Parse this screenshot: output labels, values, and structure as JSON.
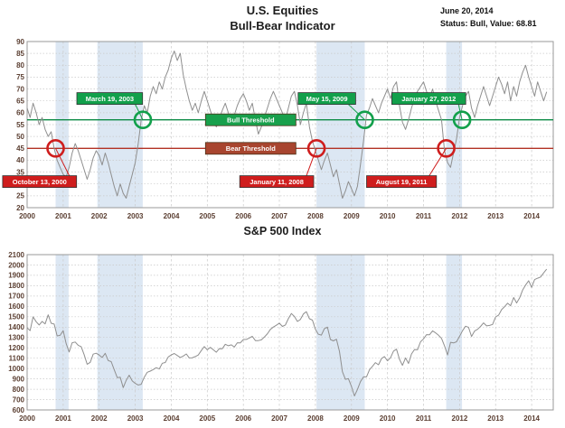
{
  "header": {
    "title_line1": "U.S. Equities",
    "title_line2": "Bull-Bear Indicator",
    "date": "June 20, 2014",
    "status_line": "Status: Bull, Value: 68.81"
  },
  "colors": {
    "bull": "#12a04b",
    "bear": "#cf1d1d",
    "band": "#dce7f3",
    "grid": "#c9c9c9",
    "border": "#999999",
    "series": "#8f8f8f",
    "tick_text": "#5c4033",
    "box_text": "#ffffff"
  },
  "chart_data": [
    {
      "type": "line",
      "title": "U.S. Equities Bull-Bear Indicator",
      "xlabel": "",
      "ylabel": "",
      "ylim": [
        20,
        90
      ],
      "yticks": [
        20,
        25,
        30,
        35,
        40,
        45,
        50,
        55,
        60,
        65,
        70,
        75,
        80,
        85,
        90
      ],
      "xlim": [
        2000,
        2014.6
      ],
      "xticks": [
        2000,
        2001,
        2002,
        2003,
        2004,
        2005,
        2006,
        2007,
        2008,
        2009,
        2010,
        2011,
        2012,
        2013,
        2014
      ],
      "grid": true,
      "x_start": 2000.0,
      "x_step": 0.0833333,
      "values": [
        62,
        58,
        64,
        60,
        55,
        58,
        53,
        50,
        52,
        45,
        40,
        37,
        34,
        33,
        37,
        43,
        47,
        44,
        40,
        36,
        32,
        36,
        41,
        44,
        42,
        38,
        43,
        39,
        34,
        29,
        25,
        30,
        26,
        24,
        29,
        34,
        39,
        47,
        57,
        63,
        60,
        67,
        71,
        68,
        73,
        70,
        75,
        78,
        83,
        86,
        82,
        85,
        76,
        70,
        65,
        61,
        64,
        60,
        65,
        69,
        65,
        61,
        57,
        54,
        57,
        61,
        64,
        60,
        56,
        59,
        63,
        66,
        68,
        65,
        61,
        64,
        57,
        51,
        54,
        58,
        62,
        66,
        69,
        66,
        63,
        60,
        57,
        62,
        67,
        69,
        63,
        55,
        60,
        64,
        54,
        48,
        44,
        40,
        36,
        40,
        43,
        38,
        33,
        36,
        30,
        24,
        27,
        31,
        28,
        25,
        29,
        38,
        48,
        59,
        62,
        66,
        63,
        60,
        64,
        67,
        70,
        66,
        71,
        73,
        63,
        56,
        53,
        57,
        62,
        66,
        69,
        71,
        73,
        69,
        66,
        70,
        65,
        61,
        57,
        44,
        39,
        37,
        43,
        49,
        58,
        63,
        67,
        69,
        62,
        58,
        63,
        67,
        71,
        67,
        63,
        67,
        71,
        75,
        72,
        68,
        73,
        65,
        71,
        67,
        73,
        77,
        80,
        75,
        71,
        67,
        73,
        69,
        65,
        68.81
      ],
      "thresholds": [
        {
          "name": "Bull Threshold",
          "value": 57,
          "line_color": "#0b8a44",
          "box_color": "#18a04c",
          "label_x": 2004.95
        },
        {
          "name": "Bear Threshold",
          "value": 45,
          "line_color": "#b23225",
          "box_color": "#a8452f",
          "label_x": 2004.95
        }
      ],
      "signals": [
        {
          "type": "bear",
          "date": "October 13, 2000",
          "x": 2000.79,
          "y": 45,
          "label_x": 1999.32,
          "label_y": 31
        },
        {
          "type": "bull",
          "date": "March 19, 2003",
          "x": 2003.21,
          "y": 57,
          "label_x": 2001.38,
          "label_y": 66
        },
        {
          "type": "bear",
          "date": "January 11, 2008",
          "x": 2008.03,
          "y": 45,
          "label_x": 2005.9,
          "label_y": 31
        },
        {
          "type": "bull",
          "date": "May 15, 2009",
          "x": 2009.37,
          "y": 57,
          "label_x": 2007.52,
          "label_y": 66
        },
        {
          "type": "bear",
          "date": "August 19, 2011",
          "x": 2011.63,
          "y": 45,
          "label_x": 2009.42,
          "label_y": 31
        },
        {
          "type": "bull",
          "date": "January 27, 2012",
          "x": 2012.07,
          "y": 57,
          "label_x": 2010.12,
          "label_y": 66
        }
      ],
      "shaded_regions": [
        [
          2000.79,
          2001.15
        ],
        [
          2001.95,
          2003.21
        ],
        [
          2008.03,
          2009.37
        ],
        [
          2011.63,
          2012.07
        ]
      ],
      "current_reading": {
        "date": "June 20, 2014",
        "status": "Bull",
        "value": 68.81
      },
      "legend_position": "none"
    },
    {
      "type": "line",
      "title": "S&P 500 Index",
      "xlabel": "",
      "ylabel": "",
      "ylim": [
        600,
        2100
      ],
      "yticks": [
        600,
        700,
        800,
        900,
        1000,
        1100,
        1200,
        1300,
        1400,
        1500,
        1600,
        1700,
        1800,
        1900,
        2000,
        2100
      ],
      "xlim": [
        2000,
        2014.6
      ],
      "xticks": [
        2000,
        2001,
        2002,
        2003,
        2004,
        2005,
        2006,
        2007,
        2008,
        2009,
        2010,
        2011,
        2012,
        2013,
        2014
      ],
      "grid": true,
      "x_start": 2000.0,
      "x_step": 0.0833333,
      "values": [
        1394,
        1366,
        1499,
        1452,
        1421,
        1455,
        1431,
        1518,
        1437,
        1429,
        1315,
        1320,
        1366,
        1240,
        1160,
        1249,
        1256,
        1224,
        1211,
        1134,
        1041,
        1060,
        1139,
        1148,
        1130,
        1107,
        1147,
        1077,
        1067,
        990,
        912,
        916,
        815,
        886,
        936,
        880,
        856,
        841,
        848,
        917,
        964,
        975,
        990,
        1008,
        996,
        1051,
        1058,
        1112,
        1131,
        1145,
        1126,
        1107,
        1121,
        1141,
        1102,
        1104,
        1115,
        1130,
        1174,
        1212,
        1181,
        1204,
        1181,
        1157,
        1192,
        1191,
        1234,
        1220,
        1229,
        1207,
        1249,
        1248,
        1280,
        1281,
        1295,
        1311,
        1270,
        1270,
        1277,
        1304,
        1336,
        1378,
        1401,
        1418,
        1438,
        1407,
        1421,
        1482,
        1531,
        1503,
        1455,
        1474,
        1527,
        1549,
        1481,
        1468,
        1379,
        1331,
        1323,
        1386,
        1400,
        1280,
        1267,
        1283,
        1166,
        969,
        896,
        903,
        826,
        735,
        798,
        873,
        919,
        919,
        987,
        1021,
        1057,
        1036,
        1096,
        1115,
        1074,
        1104,
        1169,
        1187,
        1089,
        1031,
        1102,
        1049,
        1141,
        1183,
        1181,
        1258,
        1286,
        1327,
        1326,
        1364,
        1345,
        1321,
        1292,
        1219,
        1131,
        1253,
        1247,
        1258,
        1312,
        1366,
        1408,
        1398,
        1310,
        1362,
        1379,
        1407,
        1441,
        1412,
        1416,
        1426,
        1498,
        1515,
        1569,
        1598,
        1631,
        1606,
        1686,
        1633,
        1682,
        1757,
        1806,
        1848,
        1783,
        1859,
        1872,
        1884,
        1924,
        1960
      ],
      "shaded_regions": [
        [
          2000.79,
          2001.15
        ],
        [
          2001.95,
          2003.21
        ],
        [
          2008.03,
          2009.37
        ],
        [
          2011.63,
          2012.07
        ]
      ],
      "legend_position": "none"
    }
  ]
}
